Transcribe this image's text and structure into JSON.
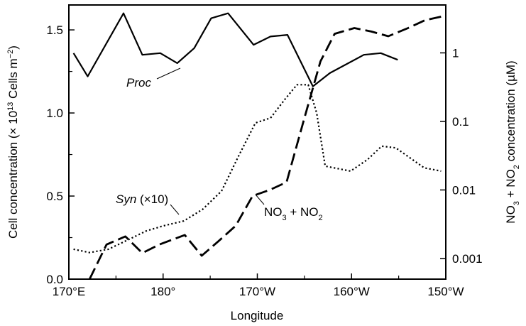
{
  "chart_data": {
    "type": "line",
    "xlabel": "Longitude",
    "ylabel_left": {
      "pre": "Cell concentration (× 10",
      "sup1": "13",
      "mid": " Cells m",
      "sup2": "−2",
      "post": ")"
    },
    "ylabel_right": {
      "a": "NO",
      "a_sub": "3",
      "b": " + NO",
      "b_sub": "2",
      "c": " concentration (µM)"
    },
    "x_ticks": [
      {
        "label": "170°E",
        "x": 170
      },
      {
        "label": "180°",
        "x": 180
      },
      {
        "label": "170°W",
        "x": 190
      },
      {
        "label": "160°W",
        "x": 200
      },
      {
        "label": "150°W",
        "x": 210
      }
    ],
    "xlim": [
      170,
      210
    ],
    "ylim_left": [
      0,
      1.65
    ],
    "y_ticks_left": [
      "0.0",
      "0.5",
      "1.0",
      "1.5"
    ],
    "ylim_right_log": [
      0.0005,
      5
    ],
    "y_ticks_right": [
      "0.001",
      "0.01",
      "0.1",
      "1"
    ],
    "series": [
      {
        "name": "Proc",
        "axis": "left",
        "style": "solid",
        "points": [
          [
            170.5,
            1.36
          ],
          [
            172,
            1.22
          ],
          [
            175.8,
            1.6
          ],
          [
            177.8,
            1.35
          ],
          [
            179.7,
            1.36
          ],
          [
            181.5,
            1.3
          ],
          [
            183.3,
            1.39
          ],
          [
            185.1,
            1.57
          ],
          [
            186.9,
            1.6
          ],
          [
            189.6,
            1.41
          ],
          [
            191.4,
            1.46
          ],
          [
            193.2,
            1.47
          ],
          [
            195.9,
            1.16
          ],
          [
            197.7,
            1.24
          ],
          [
            201.3,
            1.35
          ],
          [
            203.1,
            1.36
          ],
          [
            204.9,
            1.32
          ]
        ]
      },
      {
        "name": "Syn (×10)",
        "axis": "left",
        "style": "dotted",
        "points": [
          [
            170.5,
            0.18
          ],
          [
            172.2,
            0.16
          ],
          [
            174.2,
            0.18
          ],
          [
            176.4,
            0.24
          ],
          [
            178.2,
            0.29
          ],
          [
            180.0,
            0.32
          ],
          [
            182.2,
            0.35
          ],
          [
            184.2,
            0.42
          ],
          [
            186.2,
            0.53
          ],
          [
            188.0,
            0.74
          ],
          [
            189.8,
            0.94
          ],
          [
            191.4,
            0.97
          ],
          [
            192.9,
            1.08
          ],
          [
            194.2,
            1.17
          ],
          [
            195.4,
            1.17
          ],
          [
            196.3,
            1.0
          ],
          [
            197.2,
            0.68
          ],
          [
            199.9,
            0.65
          ],
          [
            201.7,
            0.72
          ],
          [
            203.2,
            0.8
          ],
          [
            204.7,
            0.79
          ],
          [
            207.7,
            0.67
          ],
          [
            209.5,
            0.65
          ]
        ]
      },
      {
        "name": "NO3 + NO2",
        "axis": "right",
        "style": "dashed",
        "points": [
          [
            172.2,
            0.0005
          ],
          [
            174.0,
            0.0016
          ],
          [
            176.0,
            0.0021
          ],
          [
            177.8,
            0.0012
          ],
          [
            179.6,
            0.0016
          ],
          [
            182.3,
            0.0022
          ],
          [
            184.1,
            0.0011
          ],
          [
            185.9,
            0.0018
          ],
          [
            187.7,
            0.003
          ],
          [
            189.5,
            0.0082
          ],
          [
            191.3,
            0.01
          ],
          [
            193.1,
            0.013
          ],
          [
            194.9,
            0.1
          ],
          [
            196.7,
            0.75
          ],
          [
            198.2,
            1.9
          ],
          [
            200.3,
            2.3
          ],
          [
            202.1,
            2.05
          ],
          [
            203.9,
            1.75
          ],
          [
            206.0,
            2.3
          ],
          [
            207.8,
            3.0
          ],
          [
            209.6,
            3.4
          ]
        ]
      }
    ],
    "annotations": [
      {
        "text": "Proc",
        "italic": true,
        "series": "Proc"
      },
      {
        "italic_part": "Syn",
        "rest": " (×10)",
        "series": "Syn (×10)"
      },
      {
        "series": "NO3 + NO2"
      }
    ],
    "grid": false,
    "legend": "none"
  }
}
